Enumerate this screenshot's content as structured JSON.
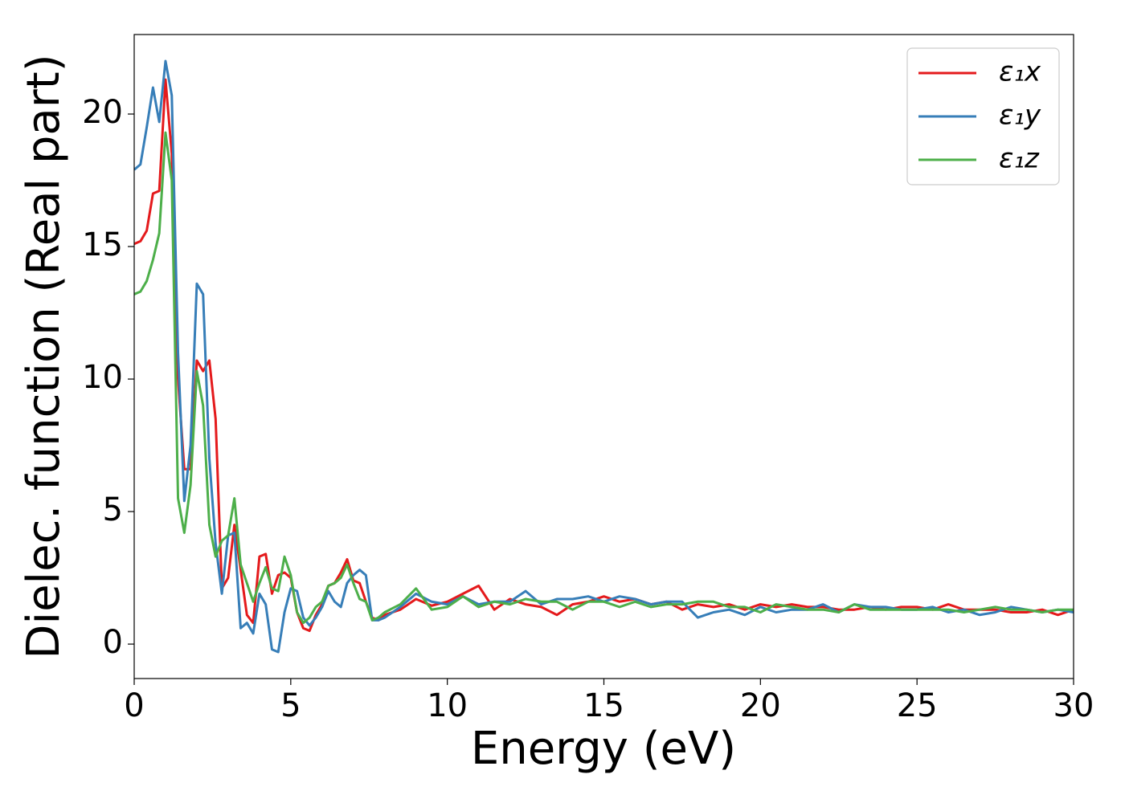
{
  "chart_data": {
    "type": "line",
    "xlabel": "Energy (eV)",
    "ylabel": "Dielec. function (Real part)",
    "x": [
      0,
      0.2,
      0.4,
      0.6,
      0.8,
      1.0,
      1.2,
      1.4,
      1.6,
      1.8,
      2.0,
      2.2,
      2.4,
      2.6,
      2.8,
      3.0,
      3.2,
      3.4,
      3.6,
      3.8,
      4.0,
      4.2,
      4.4,
      4.6,
      4.8,
      5.0,
      5.2,
      5.4,
      5.6,
      5.8,
      6.0,
      6.2,
      6.4,
      6.6,
      6.8,
      7.0,
      7.2,
      7.4,
      7.6,
      7.8,
      8.0,
      8.5,
      9,
      9.5,
      10,
      10.5,
      11,
      11.5,
      12,
      12.5,
      13,
      13.5,
      14,
      14.5,
      15,
      15.5,
      16,
      16.5,
      17,
      17.5,
      18,
      18.5,
      19,
      19.5,
      20,
      20.5,
      21,
      21.5,
      22,
      22.5,
      23,
      23.5,
      24,
      24.5,
      25,
      25.5,
      26,
      26.5,
      27,
      27.5,
      28,
      28.5,
      29,
      29.5,
      30
    ],
    "series": [
      {
        "name": "ε₁x",
        "color": "#e41a1c",
        "values": [
          15.1,
          15.2,
          15.6,
          17.0,
          17.1,
          21.3,
          18.5,
          10,
          6.6,
          6.6,
          10.7,
          10.3,
          10.7,
          8.5,
          2.1,
          2.5,
          4.5,
          2.8,
          1.1,
          0.8,
          3.3,
          3.4,
          1.9,
          2.6,
          2.7,
          2.5,
          1.2,
          0.6,
          0.5,
          1.1,
          1.5,
          2.2,
          2.3,
          2.7,
          3.2,
          2.4,
          2.3,
          1.6,
          1.0,
          0.9,
          1.1,
          1.3,
          1.7,
          1.45,
          1.6,
          1.9,
          2.2,
          1.3,
          1.7,
          1.5,
          1.4,
          1.1,
          1.5,
          1.6,
          1.8,
          1.6,
          1.7,
          1.5,
          1.6,
          1.3,
          1.5,
          1.4,
          1.5,
          1.3,
          1.5,
          1.4,
          1.5,
          1.4,
          1.4,
          1.3,
          1.3,
          1.4,
          1.3,
          1.4,
          1.4,
          1.3,
          1.5,
          1.3,
          1.3,
          1.3,
          1.2,
          1.2,
          1.3,
          1.1,
          1.3
        ]
      },
      {
        "name": "ε₁y",
        "color": "#377eb8",
        "values": [
          17.9,
          18.1,
          19.5,
          21.0,
          19.7,
          22.0,
          20.7,
          11,
          5.4,
          7.5,
          13.6,
          13.2,
          7.0,
          3.8,
          1.9,
          4.1,
          4.2,
          0.6,
          0.8,
          0.4,
          1.9,
          1.5,
          -0.2,
          -0.3,
          1.2,
          2.1,
          2.0,
          1.0,
          0.7,
          1.0,
          1.4,
          2.0,
          1.6,
          1.4,
          2.3,
          2.6,
          2.8,
          2.6,
          0.9,
          0.9,
          1.0,
          1.4,
          1.9,
          1.6,
          1.5,
          1.8,
          1.5,
          1.6,
          1.6,
          2.0,
          1.5,
          1.7,
          1.7,
          1.8,
          1.6,
          1.8,
          1.7,
          1.5,
          1.6,
          1.6,
          1.0,
          1.2,
          1.3,
          1.1,
          1.4,
          1.2,
          1.3,
          1.3,
          1.5,
          1.2,
          1.5,
          1.4,
          1.4,
          1.3,
          1.3,
          1.4,
          1.2,
          1.3,
          1.1,
          1.2,
          1.4,
          1.3,
          1.2,
          1.3,
          1.2
        ]
      },
      {
        "name": "ε₁z",
        "color": "#4daf4a",
        "values": [
          13.2,
          13.3,
          13.7,
          14.5,
          15.5,
          19.3,
          17.5,
          5.5,
          4.2,
          6.0,
          10.3,
          9.0,
          4.5,
          3.3,
          3.9,
          4.1,
          5.5,
          3.0,
          2.3,
          1.6,
          2.3,
          2.9,
          2.1,
          2.0,
          3.3,
          2.6,
          1.2,
          0.8,
          1.0,
          1.4,
          1.6,
          2.2,
          2.3,
          2.5,
          3.0,
          2.3,
          1.7,
          1.6,
          0.9,
          1.0,
          1.2,
          1.5,
          2.1,
          1.3,
          1.4,
          1.8,
          1.4,
          1.6,
          1.5,
          1.7,
          1.6,
          1.6,
          1.3,
          1.6,
          1.6,
          1.4,
          1.6,
          1.4,
          1.5,
          1.5,
          1.6,
          1.6,
          1.4,
          1.4,
          1.2,
          1.5,
          1.4,
          1.3,
          1.3,
          1.2,
          1.5,
          1.3,
          1.3,
          1.3,
          1.3,
          1.3,
          1.3,
          1.2,
          1.3,
          1.4,
          1.3,
          1.3,
          1.2,
          1.3,
          1.3
        ]
      }
    ],
    "xlim": [
      0,
      30
    ],
    "ylim": [
      -1.3,
      23.0
    ],
    "xticks": [
      0,
      5,
      10,
      15,
      20,
      25,
      30
    ],
    "yticks": [
      0,
      5,
      10,
      15,
      20
    ],
    "legend": "upper right"
  }
}
